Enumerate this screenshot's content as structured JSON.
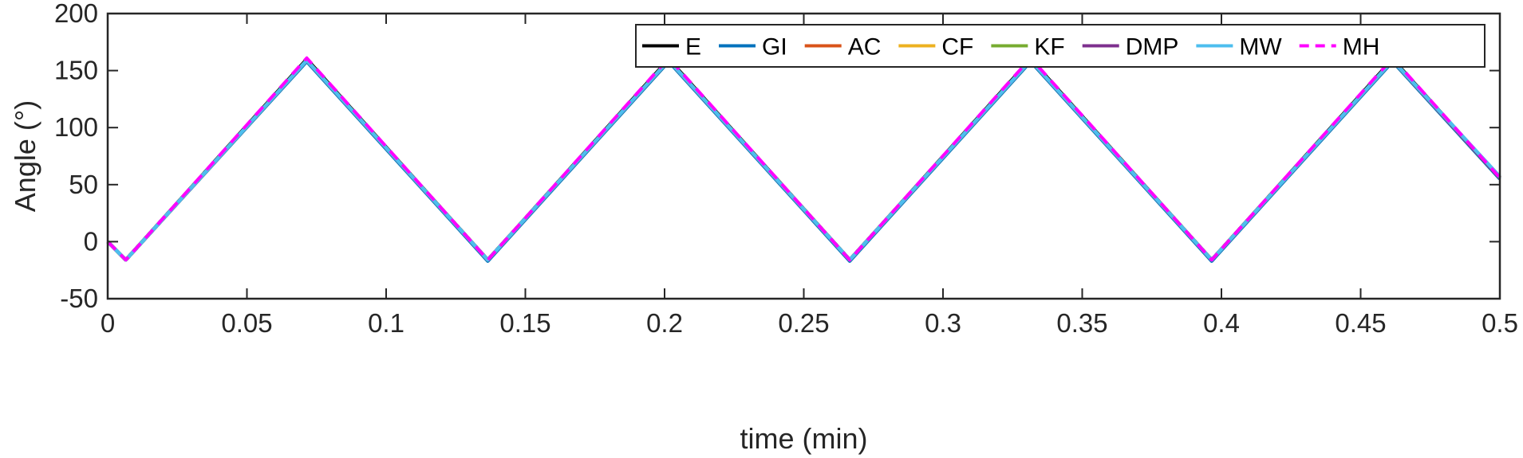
{
  "chart_data": {
    "type": "line",
    "title": "",
    "xlabel": "time (min)",
    "ylabel": "Angle (°)",
    "xlim": [
      0,
      0.5
    ],
    "ylim": [
      -50,
      200
    ],
    "xticks": [
      0,
      0.05,
      0.1,
      0.15,
      0.2,
      0.25,
      0.3,
      0.35,
      0.4,
      0.45,
      0.5
    ],
    "xtick_labels": [
      "0",
      "0.05",
      "0.1",
      "0.15",
      "0.2",
      "0.25",
      "0.3",
      "0.35",
      "0.4",
      "0.45",
      "0.5"
    ],
    "yticks": [
      -50,
      0,
      50,
      100,
      150,
      200
    ],
    "ytick_labels": [
      "-50",
      "0",
      "50",
      "100",
      "150",
      "200"
    ],
    "grid": false,
    "legend_position": "top-right",
    "legend_orientation": "horizontal",
    "series": [
      {
        "name": "E",
        "color": "#000000",
        "style": "solid",
        "x": [
          0,
          0.0065,
          0.0715,
          0.1365,
          0.2015,
          0.2665,
          0.3315,
          0.3965,
          0.4615,
          0.5
        ],
        "y": [
          0,
          -16,
          160,
          -16,
          160,
          -16,
          160,
          -16,
          160,
          56
        ]
      },
      {
        "name": "GI",
        "color": "#0072BD",
        "style": "solid",
        "x": [
          0,
          0.0065,
          0.0715,
          0.1365,
          0.2015,
          0.2665,
          0.3315,
          0.3965,
          0.4615,
          0.5
        ],
        "y": [
          0,
          -16,
          158,
          -17,
          158,
          -17,
          158,
          -17,
          158,
          55
        ]
      },
      {
        "name": "AC",
        "color": "#D95319",
        "style": "solid",
        "x": [
          0,
          0.0065,
          0.0715,
          0.1365,
          0.2015,
          0.2665,
          0.3315,
          0.3965,
          0.4615,
          0.5
        ],
        "y": [
          0,
          -16,
          159,
          -16,
          159,
          -16,
          159,
          -16,
          159,
          56
        ]
      },
      {
        "name": "CF",
        "color": "#EDB120",
        "style": "solid",
        "x": [
          0,
          0.0065,
          0.0715,
          0.1365,
          0.2015,
          0.2665,
          0.3315,
          0.3965,
          0.4615,
          0.5
        ],
        "y": [
          0,
          -16,
          159,
          -16,
          159,
          -16,
          159,
          -16,
          159,
          56
        ]
      },
      {
        "name": "KF",
        "color": "#77AC30",
        "style": "solid",
        "x": [
          0,
          0.0065,
          0.0715,
          0.1365,
          0.2015,
          0.2665,
          0.3315,
          0.3965,
          0.4615,
          0.5
        ],
        "y": [
          0,
          -16,
          159,
          -16,
          159,
          -16,
          159,
          -16,
          159,
          56
        ]
      },
      {
        "name": "DMP",
        "color": "#7E2F8E",
        "style": "solid",
        "x": [
          0,
          0.0065,
          0.0715,
          0.1365,
          0.2015,
          0.2665,
          0.3315,
          0.3965,
          0.4615,
          0.5
        ],
        "y": [
          0,
          -16,
          159,
          -16,
          159,
          -16,
          159,
          -16,
          159,
          56
        ]
      },
      {
        "name": "MW",
        "color": "#4DBEEE",
        "style": "solid",
        "x": [
          0,
          0.0065,
          0.0715,
          0.1365,
          0.2015,
          0.2665,
          0.3315,
          0.3965,
          0.4615,
          0.5
        ],
        "y": [
          0,
          -16,
          159,
          -16,
          159,
          -16,
          159,
          -16,
          159,
          57
        ]
      },
      {
        "name": "MH",
        "color": "#FF00FF",
        "style": "dashed",
        "x": [
          0,
          0.0065,
          0.0715,
          0.1365,
          0.2015,
          0.2665,
          0.3315,
          0.3965,
          0.4615,
          0.5
        ],
        "y": [
          0,
          -16,
          161,
          -16,
          161,
          -16,
          161,
          -16,
          161,
          56
        ]
      }
    ]
  }
}
